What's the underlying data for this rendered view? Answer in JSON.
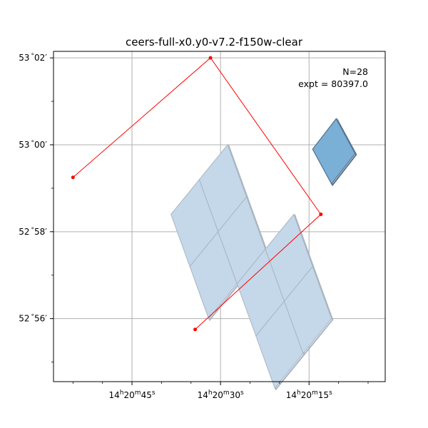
{
  "chart_data": {
    "type": "scatter",
    "title": "ceers-full-x0.y0-v7.2-f150w-clear",
    "xlabel": "",
    "ylabel": "",
    "x_axis": "Right Ascension (decreasing to the right)",
    "xlim_seconds": [
      58.3,
      2.1
    ],
    "ylim_arcmin": [
      54.55,
      62.15
    ],
    "grid": true,
    "x_ticks": [
      {
        "label_h": "14",
        "label_m": "20",
        "label_s": "45",
        "value_s": 45
      },
      {
        "label_h": "14",
        "label_m": "20",
        "label_s": "30",
        "value_s": 30
      },
      {
        "label_h": "14",
        "label_m": "20",
        "label_s": "15",
        "value_s": 15
      }
    ],
    "y_ticks": [
      {
        "label_deg": "53",
        "label_min": "02",
        "value_arcmin": 62
      },
      {
        "label_deg": "53",
        "label_min": "00",
        "value_arcmin": 60
      },
      {
        "label_deg": "52",
        "label_min": "58",
        "value_arcmin": 58
      },
      {
        "label_deg": "52",
        "label_min": "56",
        "value_arcmin": 56
      }
    ],
    "annotations": [
      {
        "text": "N=28"
      },
      {
        "text": "expt = 80397.0"
      }
    ],
    "footprints": [
      {
        "corners": [
          [
            38.4,
            58.4
          ],
          [
            33.6,
            59.2
          ],
          [
            30.4,
            58.0
          ],
          [
            35.2,
            57.2
          ]
        ],
        "style": "light"
      },
      {
        "corners": [
          [
            33.6,
            59.2
          ],
          [
            28.8,
            60.0
          ],
          [
            25.6,
            58.8
          ],
          [
            30.4,
            58.0
          ]
        ],
        "style": "light"
      },
      {
        "corners": [
          [
            35.2,
            57.2
          ],
          [
            30.4,
            58.0
          ],
          [
            27.2,
            56.8
          ],
          [
            32.0,
            56.0
          ]
        ],
        "style": "light"
      },
      {
        "corners": [
          [
            30.4,
            58.0
          ],
          [
            25.6,
            58.8
          ],
          [
            22.4,
            57.6
          ],
          [
            27.2,
            56.8
          ]
        ],
        "style": "light"
      },
      {
        "corners": [
          [
            27.2,
            56.8
          ],
          [
            22.4,
            57.6
          ],
          [
            19.2,
            56.4
          ],
          [
            24.0,
            55.6
          ]
        ],
        "style": "light"
      },
      {
        "corners": [
          [
            22.4,
            57.6
          ],
          [
            17.6,
            58.4
          ],
          [
            14.4,
            57.2
          ],
          [
            19.2,
            56.4
          ]
        ],
        "style": "light"
      },
      {
        "corners": [
          [
            24.0,
            55.6
          ],
          [
            19.2,
            56.4
          ],
          [
            16.0,
            55.2
          ],
          [
            20.8,
            54.4
          ]
        ],
        "style": "light"
      },
      {
        "corners": [
          [
            19.2,
            56.4
          ],
          [
            14.4,
            57.2
          ],
          [
            11.2,
            56.0
          ],
          [
            16.0,
            55.2
          ]
        ],
        "style": "light"
      },
      {
        "corners": [
          [
            14.4,
            59.9
          ],
          [
            10.4,
            60.6
          ],
          [
            7.2,
            59.8
          ],
          [
            11.2,
            59.1
          ]
        ],
        "style": "dark"
      }
    ],
    "path_points": [
      [
        55.0,
        59.25
      ],
      [
        31.7,
        62.0
      ],
      [
        13.0,
        58.4
      ],
      [
        34.3,
        55.75
      ]
    ],
    "colors": {
      "light_fill": "#c4d8e9",
      "light_edge": "#a9b5c2",
      "dark_fill": "#7aafd6",
      "dark_edge": "#56718f",
      "path": "#ff0000",
      "grid": "#b0b0b0"
    }
  }
}
